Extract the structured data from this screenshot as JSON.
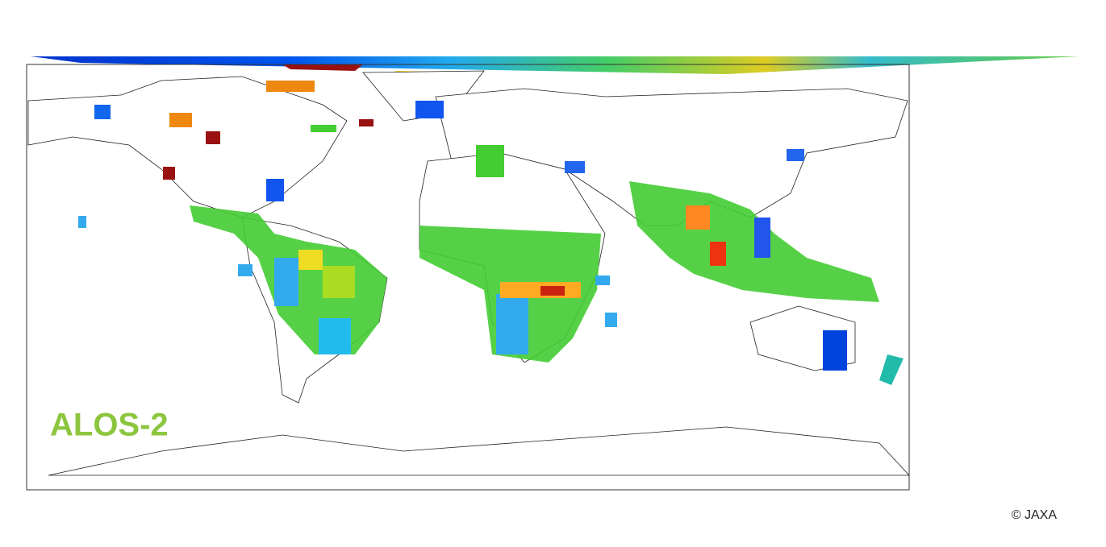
{
  "logo": "ALOS-2",
  "credit": "© JAXA"
}
